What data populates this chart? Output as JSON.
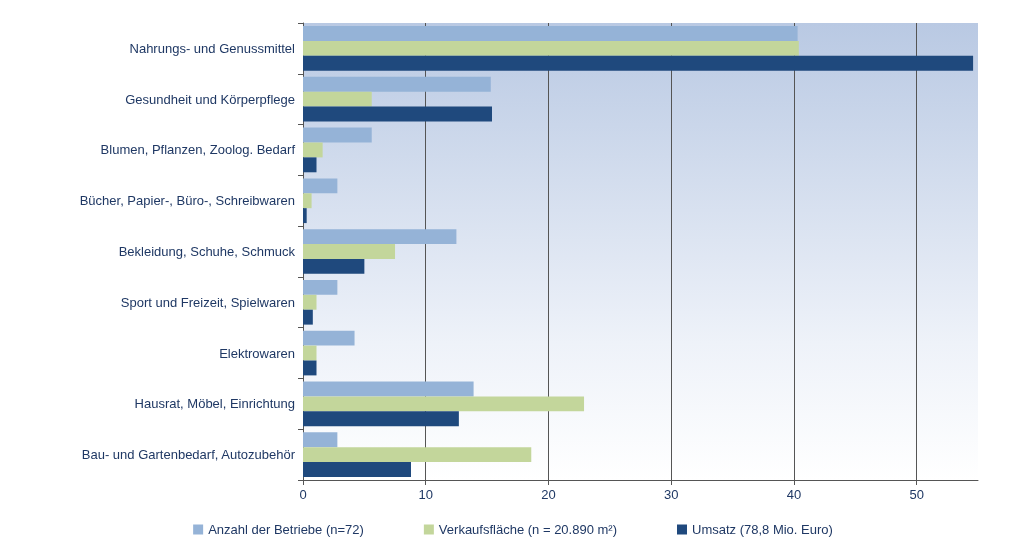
{
  "chart_data": {
    "type": "bar",
    "orientation": "horizontal",
    "categories": [
      "Nahrungs- und Genussmittel",
      "Gesundheit und Körperpflege",
      "Blumen, Pflanzen, Zoolog. Bedarf",
      "Bücher, Papier-, Büro-, Schreibwaren",
      "Bekleidung, Schuhe, Schmuck",
      "Sport und Freizeit, Spielwaren",
      "Elektrowaren",
      "Hausrat, Möbel, Einrichtung",
      "Bau- und Gartenbedarf, Autozubehör"
    ],
    "series": [
      {
        "name": "Anzahl der Betriebe (n=72)",
        "color": "#95b3d7",
        "values": [
          40.3,
          15.3,
          5.6,
          2.8,
          12.5,
          2.8,
          4.2,
          13.9,
          2.8
        ]
      },
      {
        "name": "Verkaufsfläche (n = 20.890 m²)",
        "color": "#c3d69b",
        "values": [
          40.4,
          5.6,
          1.6,
          0.7,
          7.5,
          1.1,
          1.1,
          22.9,
          18.6
        ]
      },
      {
        "name": "Umsatz (78,8 Mio. Euro)",
        "color": "#1f497d",
        "values": [
          54.6,
          15.4,
          1.1,
          0.3,
          5.0,
          0.8,
          1.1,
          12.7,
          8.8
        ]
      }
    ],
    "xlim": [
      0,
      55
    ],
    "xticks": [
      0,
      10,
      20,
      30,
      40,
      50
    ],
    "grid": "x",
    "legend": "bottom"
  }
}
